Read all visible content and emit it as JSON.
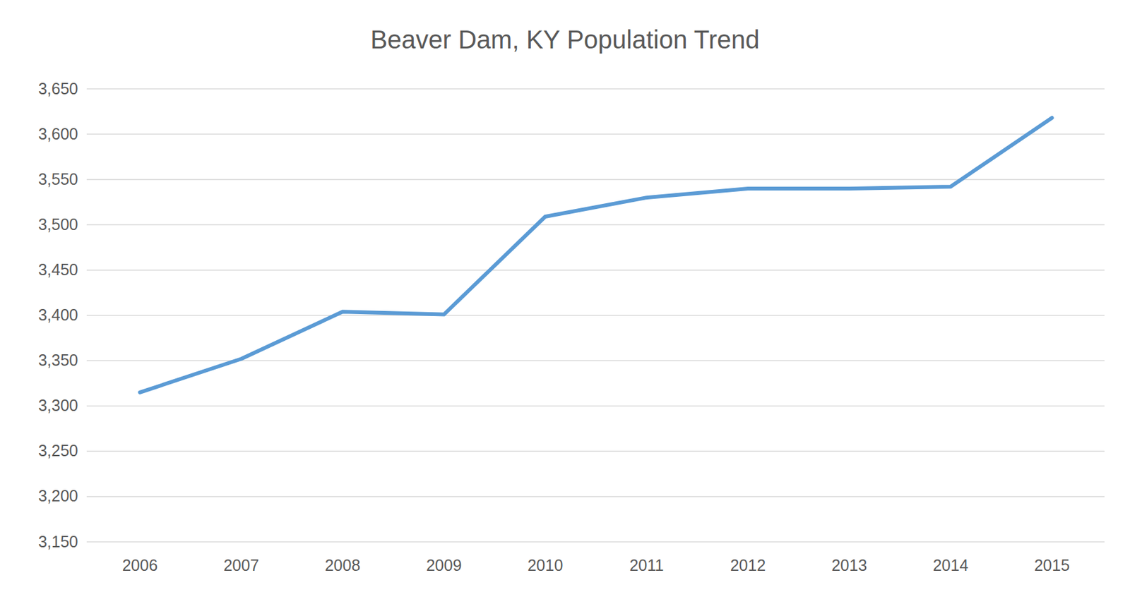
{
  "chart_data": {
    "type": "line",
    "title": "Beaver Dam, KY Population Trend",
    "categories": [
      "2006",
      "2007",
      "2008",
      "2009",
      "2010",
      "2011",
      "2012",
      "2013",
      "2014",
      "2015"
    ],
    "values": [
      3315,
      3352,
      3404,
      3401,
      3509,
      3530,
      3540,
      3540,
      3542,
      3618
    ],
    "color": "#5b9bd5",
    "ylim": [
      3150,
      3650
    ],
    "yticks": [
      {
        "value": 3150,
        "label": "3,150"
      },
      {
        "value": 3200,
        "label": "3,200"
      },
      {
        "value": 3250,
        "label": "3,250"
      },
      {
        "value": 3300,
        "label": "3,300"
      },
      {
        "value": 3350,
        "label": "3,350"
      },
      {
        "value": 3400,
        "label": "3,400"
      },
      {
        "value": 3450,
        "label": "3,450"
      },
      {
        "value": 3500,
        "label": "3,500"
      },
      {
        "value": 3550,
        "label": "3,550"
      },
      {
        "value": 3600,
        "label": "3,600"
      },
      {
        "value": 3650,
        "label": "3,650"
      }
    ],
    "grid": true
  }
}
